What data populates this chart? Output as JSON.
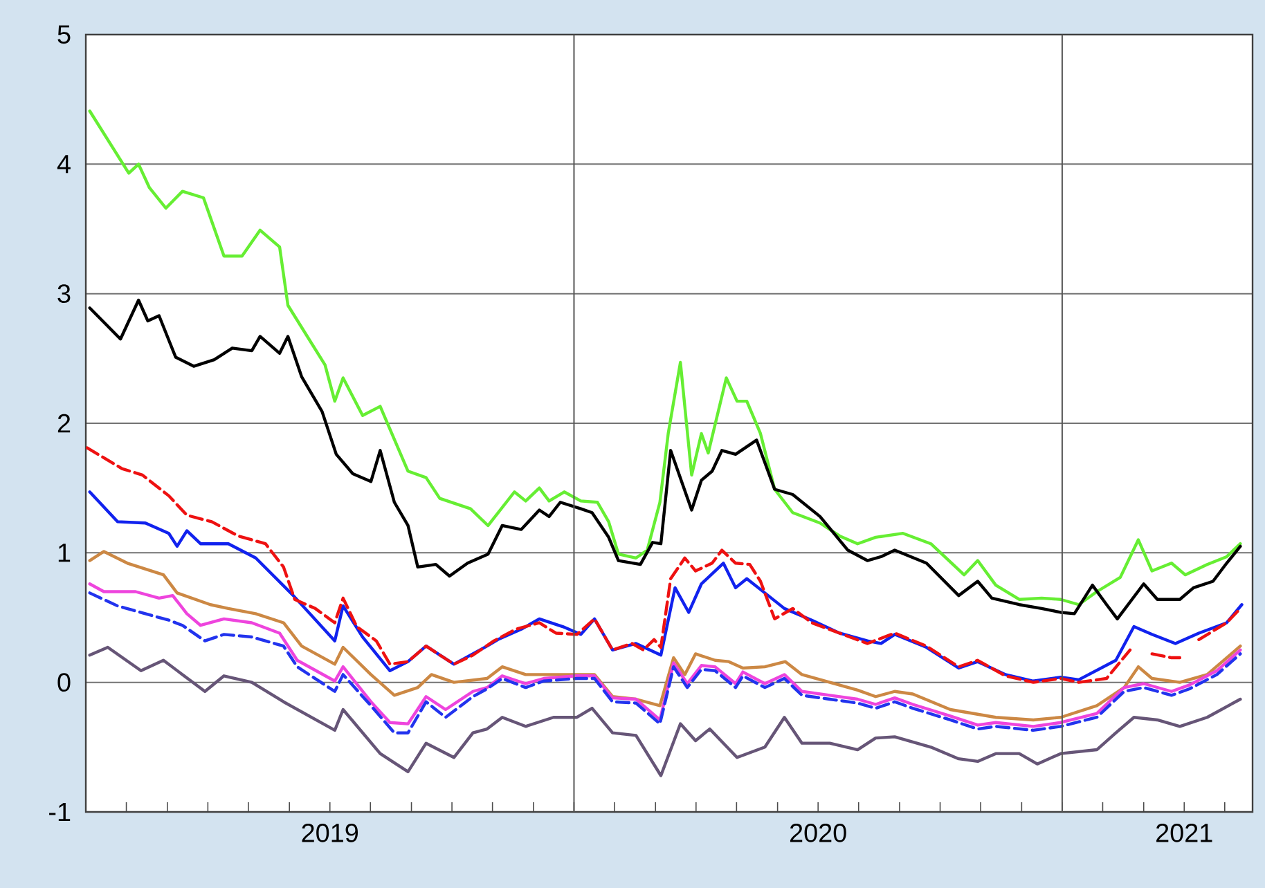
{
  "chart_data": {
    "type": "line",
    "xlim": [
      2019.0,
      2021.39
    ],
    "ylim": [
      -1,
      5
    ],
    "yticks": [
      -1,
      0,
      1,
      2,
      3,
      4,
      5
    ],
    "xticks": [
      {
        "value": 2019.083,
        "label": null
      },
      {
        "value": 2019.167,
        "label": null
      },
      {
        "value": 2019.25,
        "label": null
      },
      {
        "value": 2019.333,
        "label": null
      },
      {
        "value": 2019.417,
        "label": null
      },
      {
        "value": 2019.5,
        "label": "2019"
      },
      {
        "value": 2019.583,
        "label": null
      },
      {
        "value": 2019.667,
        "label": null
      },
      {
        "value": 2019.75,
        "label": null
      },
      {
        "value": 2019.833,
        "label": null
      },
      {
        "value": 2019.917,
        "label": null
      },
      {
        "value": 2020.0,
        "label": null
      },
      {
        "value": 2020.083,
        "label": null
      },
      {
        "value": 2020.167,
        "label": null
      },
      {
        "value": 2020.25,
        "label": null
      },
      {
        "value": 2020.333,
        "label": null
      },
      {
        "value": 2020.417,
        "label": null
      },
      {
        "value": 2020.5,
        "label": "2020"
      },
      {
        "value": 2020.583,
        "label": null
      },
      {
        "value": 2020.667,
        "label": null
      },
      {
        "value": 2020.75,
        "label": null
      },
      {
        "value": 2020.833,
        "label": null
      },
      {
        "value": 2020.917,
        "label": null
      },
      {
        "value": 2021.0,
        "label": null
      },
      {
        "value": 2021.083,
        "label": null
      },
      {
        "value": 2021.167,
        "label": null
      },
      {
        "value": 2021.25,
        "label": "2021"
      },
      {
        "value": 2021.333,
        "label": null
      }
    ],
    "grid": "y",
    "ref_lines": [
      {
        "axis": "x",
        "value": 2020.0,
        "color": "#555555"
      },
      {
        "axis": "x",
        "value": 2021.0,
        "color": "#555555"
      }
    ],
    "series": [
      {
        "color": "#66ee33",
        "line_style": "solid",
        "x": [
          2019.008,
          2019.088,
          2019.108,
          2019.13,
          2019.164,
          2019.198,
          2019.241,
          2019.283,
          2019.32,
          2019.357,
          2019.397,
          2019.414,
          2019.49,
          2019.51,
          2019.527,
          2019.567,
          2019.603,
          2019.66,
          2019.697,
          2019.725,
          2019.788,
          2019.824,
          2019.878,
          2019.901,
          2019.929,
          2019.949,
          2019.98,
          2020.014,
          2020.048,
          2020.071,
          2020.091,
          2020.127,
          2020.15,
          2020.176,
          2020.193,
          2020.218,
          2020.241,
          2020.261,
          2020.275,
          2020.312,
          2020.334,
          2020.354,
          2020.382,
          2020.411,
          2020.448,
          2020.504,
          2020.544,
          2020.581,
          2020.618,
          2020.674,
          2020.731,
          2020.799,
          2020.827,
          2020.864,
          2020.912,
          2020.958,
          2020.997,
          2021.034,
          2021.071,
          2021.119,
          2021.156,
          2021.184,
          2021.224,
          2021.252,
          2021.297,
          2021.337,
          2021.365
        ],
        "values": [
          4.41,
          3.93,
          4.0,
          3.82,
          3.66,
          3.79,
          3.74,
          3.29,
          3.29,
          3.49,
          3.36,
          2.91,
          2.45,
          2.17,
          2.35,
          2.06,
          2.13,
          1.63,
          1.58,
          1.42,
          1.34,
          1.21,
          1.47,
          1.4,
          1.5,
          1.4,
          1.47,
          1.4,
          1.39,
          1.24,
          0.99,
          0.96,
          1.02,
          1.39,
          1.92,
          2.47,
          1.6,
          1.92,
          1.77,
          2.35,
          2.17,
          2.17,
          1.92,
          1.49,
          1.31,
          1.23,
          1.13,
          1.07,
          1.12,
          1.15,
          1.07,
          0.83,
          0.94,
          0.75,
          0.64,
          0.65,
          0.64,
          0.6,
          0.7,
          0.81,
          1.1,
          0.86,
          0.92,
          0.83,
          0.91,
          0.97,
          1.07
        ]
      },
      {
        "color": "#000000",
        "line_style": "solid",
        "x": [
          2019.008,
          2019.071,
          2019.108,
          2019.127,
          2019.15,
          2019.184,
          2019.221,
          2019.263,
          2019.3,
          2019.34,
          2019.357,
          2019.397,
          2019.414,
          2019.442,
          2019.484,
          2019.513,
          2019.547,
          2019.584,
          2019.603,
          2019.632,
          2019.66,
          2019.68,
          2019.717,
          2019.745,
          2019.782,
          2019.824,
          2019.853,
          2019.892,
          2019.929,
          2019.949,
          2019.972,
          2020.014,
          2020.037,
          2020.071,
          2020.091,
          2020.136,
          2020.161,
          2020.178,
          2020.198,
          2020.241,
          2020.261,
          2020.283,
          2020.303,
          2020.331,
          2020.374,
          2020.411,
          2020.448,
          2020.504,
          2020.561,
          2020.601,
          2020.629,
          2020.657,
          2020.722,
          2020.788,
          2020.827,
          2020.856,
          2020.912,
          2020.958,
          2020.997,
          2021.025,
          2021.062,
          2021.091,
          2021.113,
          2021.167,
          2021.195,
          2021.241,
          2021.269,
          2021.309,
          2021.337,
          2021.365
        ],
        "values": [
          2.89,
          2.65,
          2.95,
          2.79,
          2.83,
          2.51,
          2.44,
          2.49,
          2.58,
          2.56,
          2.67,
          2.54,
          2.67,
          2.36,
          2.09,
          1.76,
          1.61,
          1.55,
          1.79,
          1.39,
          1.21,
          0.89,
          0.91,
          0.82,
          0.92,
          0.99,
          1.21,
          1.18,
          1.33,
          1.28,
          1.39,
          1.34,
          1.31,
          1.12,
          0.94,
          0.91,
          1.08,
          1.07,
          1.79,
          1.33,
          1.56,
          1.63,
          1.79,
          1.76,
          1.87,
          1.49,
          1.45,
          1.28,
          1.02,
          0.94,
          0.97,
          1.02,
          0.92,
          0.67,
          0.78,
          0.65,
          0.6,
          0.57,
          0.54,
          0.53,
          0.75,
          0.6,
          0.49,
          0.76,
          0.64,
          0.64,
          0.73,
          0.78,
          0.92,
          1.05
        ]
      },
      {
        "color": "#ee1111",
        "line_style": "dashed",
        "x": [
          2019.003,
          2019.074,
          2019.116,
          2019.17,
          2019.207,
          2019.258,
          2019.312,
          2019.368,
          2019.405,
          2019.428,
          2019.47,
          2019.51,
          2019.527,
          2019.555,
          2019.595,
          2019.623,
          2019.66,
          2019.697,
          2019.754,
          2019.793,
          2019.836,
          2019.881,
          2019.929,
          2019.963,
          2020.006,
          2020.042,
          2020.079,
          2020.119,
          2020.142,
          2020.164,
          2020.178,
          2020.198,
          2020.227,
          2020.249,
          2020.283,
          2020.303,
          2020.331,
          2020.36,
          2020.382,
          2020.411,
          2020.448,
          2020.487,
          2020.544,
          2020.601,
          2020.657,
          2020.722,
          2020.788,
          2020.827,
          2020.884,
          2020.941,
          2020.997,
          2021.034,
          2021.091,
          2021.139,
          2021.161,
          2021.184,
          2021.224,
          2021.241,
          2021.261,
          2021.28,
          2021.337,
          2021.365
        ],
        "values": [
          1.81,
          1.65,
          1.6,
          1.44,
          1.29,
          1.24,
          1.13,
          1.07,
          0.89,
          0.64,
          0.57,
          0.46,
          0.65,
          0.43,
          0.32,
          0.14,
          0.16,
          0.28,
          0.14,
          0.21,
          0.32,
          0.41,
          0.46,
          0.38,
          0.37,
          0.49,
          0.25,
          0.3,
          0.25,
          0.33,
          0.27,
          0.8,
          0.96,
          0.86,
          0.92,
          1.02,
          0.92,
          0.91,
          0.78,
          0.49,
          0.57,
          0.46,
          0.38,
          0.3,
          0.38,
          0.28,
          0.12,
          0.17,
          0.05,
          0.0,
          0.03,
          0.0,
          0.03,
          0.25,
          null,
          0.22,
          0.19,
          0.19,
          null,
          0.33,
          0.46,
          0.57
        ]
      },
      {
        "color": "#1122ee",
        "line_style": "solid",
        "x": [
          2019.008,
          2019.065,
          2019.122,
          2019.17,
          2019.187,
          2019.207,
          2019.235,
          2019.292,
          2019.348,
          2019.425,
          2019.51,
          2019.527,
          2019.567,
          2019.623,
          2019.66,
          2019.697,
          2019.754,
          2019.822,
          2019.844,
          2019.892,
          2019.929,
          2019.977,
          2020.014,
          2020.042,
          2020.079,
          2020.127,
          2020.178,
          2020.207,
          2020.235,
          2020.261,
          2020.306,
          2020.331,
          2020.354,
          2020.391,
          2020.431,
          2020.487,
          2020.544,
          2020.601,
          2020.629,
          2020.657,
          2020.722,
          2020.788,
          2020.827,
          2020.884,
          2020.941,
          2020.997,
          2021.034,
          2021.11,
          2021.147,
          2021.184,
          2021.232,
          2021.28,
          2021.337,
          2021.368
        ],
        "values": [
          1.47,
          1.24,
          1.23,
          1.15,
          1.05,
          1.17,
          1.07,
          1.07,
          0.96,
          0.67,
          0.32,
          0.59,
          0.35,
          0.09,
          0.16,
          0.28,
          0.14,
          0.28,
          0.33,
          0.41,
          0.49,
          0.43,
          0.37,
          0.49,
          0.25,
          0.3,
          0.21,
          0.73,
          0.54,
          0.76,
          0.92,
          0.73,
          0.8,
          0.69,
          0.57,
          0.48,
          0.38,
          0.32,
          0.3,
          0.37,
          0.27,
          0.11,
          0.16,
          0.06,
          0.01,
          0.04,
          0.02,
          0.17,
          0.43,
          0.37,
          0.3,
          0.38,
          0.46,
          0.6
        ]
      },
      {
        "color": "#cc8844",
        "line_style": "solid",
        "x": [
          2019.008,
          2019.037,
          2019.085,
          2019.159,
          2019.187,
          2019.255,
          2019.292,
          2019.348,
          2019.405,
          2019.442,
          2019.51,
          2019.527,
          2019.584,
          2019.632,
          2019.68,
          2019.708,
          2019.754,
          2019.822,
          2019.853,
          2019.901,
          2019.977,
          2020.042,
          2020.079,
          2020.127,
          2020.176,
          2020.204,
          2020.227,
          2020.249,
          2020.289,
          2020.317,
          2020.346,
          2020.391,
          2020.433,
          2020.467,
          2020.524,
          2020.581,
          2020.618,
          2020.657,
          2020.694,
          2020.771,
          2020.864,
          2020.941,
          2020.997,
          2021.071,
          2021.127,
          2021.156,
          2021.184,
          2021.241,
          2021.297,
          2021.365
        ],
        "values": [
          0.94,
          1.01,
          0.92,
          0.83,
          0.69,
          0.6,
          0.57,
          0.53,
          0.46,
          0.28,
          0.14,
          0.27,
          0.06,
          -0.1,
          -0.04,
          0.06,
          0.0,
          0.03,
          0.12,
          0.06,
          0.06,
          0.06,
          -0.11,
          -0.13,
          -0.18,
          0.19,
          0.06,
          0.22,
          0.17,
          0.16,
          0.11,
          0.12,
          0.16,
          0.06,
          0.0,
          -0.06,
          -0.11,
          -0.07,
          -0.09,
          -0.21,
          -0.27,
          -0.29,
          -0.27,
          -0.18,
          -0.04,
          0.12,
          0.03,
          0.0,
          0.06,
          0.28
        ]
      },
      {
        "color": "#ee44dd",
        "line_style": "solid",
        "x": [
          2019.008,
          2019.037,
          2019.102,
          2019.15,
          2019.178,
          2019.207,
          2019.235,
          2019.283,
          2019.34,
          2019.397,
          2019.433,
          2019.51,
          2019.527,
          2019.584,
          2019.623,
          2019.66,
          2019.697,
          2019.737,
          2019.793,
          2019.822,
          2019.853,
          2019.901,
          2019.938,
          2020.006,
          2020.042,
          2020.079,
          2020.127,
          2020.176,
          2020.204,
          2020.232,
          2020.261,
          2020.289,
          2020.331,
          2020.346,
          2020.391,
          2020.431,
          2020.467,
          2020.524,
          2020.581,
          2020.618,
          2020.657,
          2020.694,
          2020.771,
          2020.827,
          2020.864,
          2020.941,
          2020.997,
          2021.071,
          2021.127,
          2021.167,
          2021.224,
          2021.261,
          2021.317,
          2021.365
        ],
        "values": [
          0.76,
          0.7,
          0.7,
          0.65,
          0.67,
          0.53,
          0.44,
          0.49,
          0.46,
          0.38,
          0.17,
          0.01,
          0.12,
          -0.15,
          -0.31,
          -0.32,
          -0.11,
          -0.21,
          -0.07,
          -0.04,
          0.05,
          -0.01,
          0.03,
          0.05,
          0.05,
          -0.12,
          -0.13,
          -0.29,
          0.15,
          -0.01,
          0.13,
          0.12,
          -0.01,
          0.08,
          -0.01,
          0.06,
          -0.07,
          -0.1,
          -0.13,
          -0.17,
          -0.12,
          -0.17,
          -0.26,
          -0.33,
          -0.31,
          -0.34,
          -0.31,
          -0.24,
          -0.04,
          -0.01,
          -0.07,
          -0.02,
          0.09,
          0.25
        ]
      },
      {
        "color": "#2233ee",
        "line_style": "dashed",
        "x": [
          2019.008,
          2019.065,
          2019.122,
          2019.17,
          2019.198,
          2019.244,
          2019.283,
          2019.34,
          2019.405,
          2019.433,
          2019.51,
          2019.527,
          2019.584,
          2019.632,
          2019.66,
          2019.697,
          2019.737,
          2019.793,
          2019.822,
          2019.853,
          2019.901,
          2019.938,
          2020.006,
          2020.042,
          2020.079,
          2020.127,
          2020.176,
          2020.204,
          2020.232,
          2020.261,
          2020.289,
          2020.331,
          2020.346,
          2020.391,
          2020.431,
          2020.467,
          2020.524,
          2020.581,
          2020.618,
          2020.657,
          2020.694,
          2020.771,
          2020.827,
          2020.864,
          2020.941,
          2020.997,
          2021.071,
          2021.127,
          2021.167,
          2021.224,
          2021.261,
          2021.317,
          2021.365
        ],
        "values": [
          0.69,
          0.59,
          0.53,
          0.48,
          0.44,
          0.32,
          0.37,
          0.35,
          0.28,
          0.12,
          -0.07,
          0.06,
          -0.18,
          -0.39,
          -0.39,
          -0.15,
          -0.27,
          -0.11,
          -0.05,
          0.03,
          -0.04,
          0.01,
          0.03,
          0.03,
          -0.15,
          -0.16,
          -0.32,
          0.12,
          -0.04,
          0.1,
          0.09,
          -0.04,
          0.05,
          -0.04,
          0.03,
          -0.1,
          -0.13,
          -0.16,
          -0.2,
          -0.15,
          -0.2,
          -0.29,
          -0.36,
          -0.34,
          -0.37,
          -0.34,
          -0.27,
          -0.07,
          -0.04,
          -0.1,
          -0.05,
          0.06,
          0.22
        ]
      },
      {
        "color": "#665577",
        "line_style": "solid",
        "x": [
          2019.008,
          2019.045,
          2019.113,
          2019.159,
          2019.198,
          2019.244,
          2019.283,
          2019.34,
          2019.405,
          2019.51,
          2019.527,
          2019.603,
          2019.66,
          2019.697,
          2019.754,
          2019.793,
          2019.822,
          2019.853,
          2019.901,
          2019.958,
          2020.006,
          2020.037,
          2020.079,
          2020.127,
          2020.178,
          2020.218,
          2020.249,
          2020.278,
          2020.334,
          2020.391,
          2020.431,
          2020.467,
          2020.524,
          2020.581,
          2020.618,
          2020.657,
          2020.731,
          2020.788,
          2020.827,
          2020.864,
          2020.912,
          2020.949,
          2020.997,
          2021.071,
          2021.11,
          2021.147,
          2021.195,
          2021.241,
          2021.297,
          2021.365
        ],
        "values": [
          0.21,
          0.27,
          0.09,
          0.17,
          0.06,
          -0.07,
          0.05,
          0.0,
          -0.15,
          -0.37,
          -0.21,
          -0.55,
          -0.69,
          -0.47,
          -0.58,
          -0.39,
          -0.36,
          -0.27,
          -0.34,
          -0.27,
          -0.27,
          -0.2,
          -0.39,
          -0.41,
          -0.72,
          -0.32,
          -0.45,
          -0.36,
          -0.58,
          -0.5,
          -0.27,
          -0.47,
          -0.47,
          -0.52,
          -0.43,
          -0.42,
          -0.5,
          -0.59,
          -0.61,
          -0.55,
          -0.55,
          -0.63,
          -0.55,
          -0.52,
          -0.39,
          -0.27,
          -0.29,
          -0.34,
          -0.27,
          -0.13
        ]
      }
    ]
  }
}
